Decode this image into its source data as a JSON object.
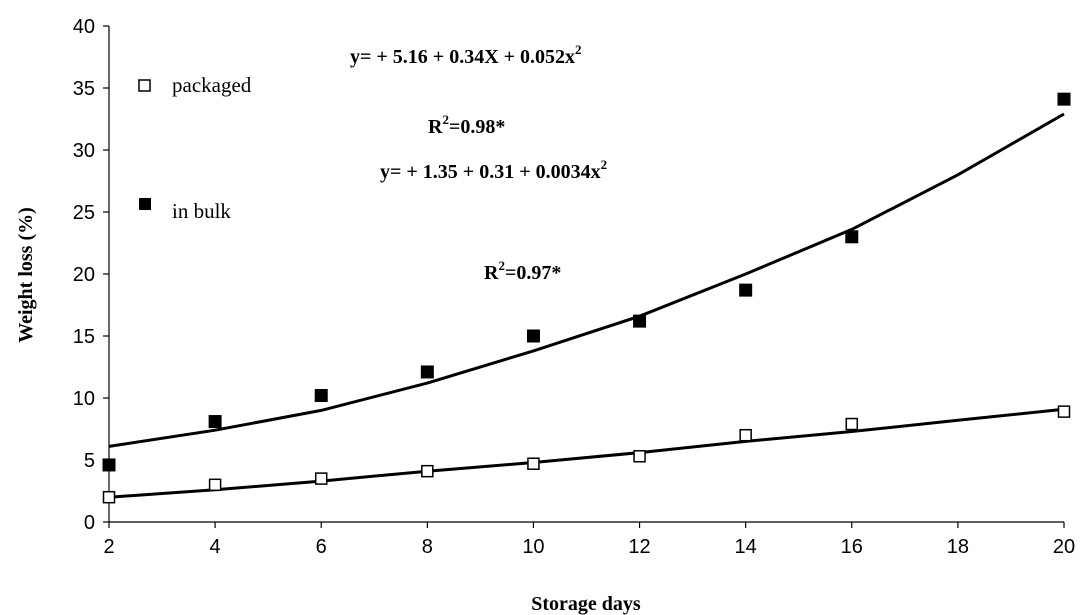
{
  "chart_data": {
    "type": "scatter",
    "xlabel": "Storage days",
    "ylabel": "Weight loss (%)",
    "xlim": [
      2,
      20
    ],
    "ylim": [
      0,
      40
    ],
    "x_ticks": [
      2,
      4,
      6,
      8,
      10,
      12,
      14,
      16,
      18,
      20
    ],
    "y_ticks": [
      0,
      5,
      10,
      15,
      20,
      25,
      30,
      35,
      40
    ],
    "grid": false,
    "legend_position": "top-left",
    "series": [
      {
        "name": "packaged",
        "marker": "open-square",
        "x": [
          2,
          4,
          6,
          8,
          10,
          12,
          14,
          16,
          20
        ],
        "y": [
          2.0,
          3.0,
          3.5,
          4.1,
          4.7,
          5.3,
          7.0,
          7.9,
          8.9
        ],
        "trendline": [
          [
            2,
            2.0
          ],
          [
            4,
            2.6
          ],
          [
            6,
            3.3
          ],
          [
            8,
            4.1
          ],
          [
            10,
            4.8
          ],
          [
            12,
            5.6
          ],
          [
            14,
            6.5
          ],
          [
            16,
            7.3
          ],
          [
            18,
            8.2
          ],
          [
            20,
            9.1
          ]
        ]
      },
      {
        "name": "in bulk",
        "marker": "filled-square",
        "x": [
          2,
          4,
          6,
          8,
          10,
          12,
          14,
          16,
          20
        ],
        "y": [
          4.6,
          8.1,
          10.2,
          12.1,
          15.0,
          16.2,
          18.7,
          23.0,
          34.1
        ],
        "trendline": [
          [
            2,
            6.1
          ],
          [
            4,
            7.4
          ],
          [
            6,
            9.0
          ],
          [
            8,
            11.2
          ],
          [
            10,
            13.8
          ],
          [
            12,
            16.6
          ],
          [
            14,
            20.0
          ],
          [
            16,
            23.6
          ],
          [
            18,
            28.0
          ],
          [
            20,
            32.9
          ]
        ]
      }
    ],
    "annotations": {
      "eq1": "y= + 5.16 + 0.34X + 0.052x",
      "r2_1": "=0.98*",
      "eq2": "y= + 1.35 + 0.31 + 0.0034x",
      "r2_2": "=0.97*",
      "sup": "2",
      "r_letter": "R"
    }
  }
}
